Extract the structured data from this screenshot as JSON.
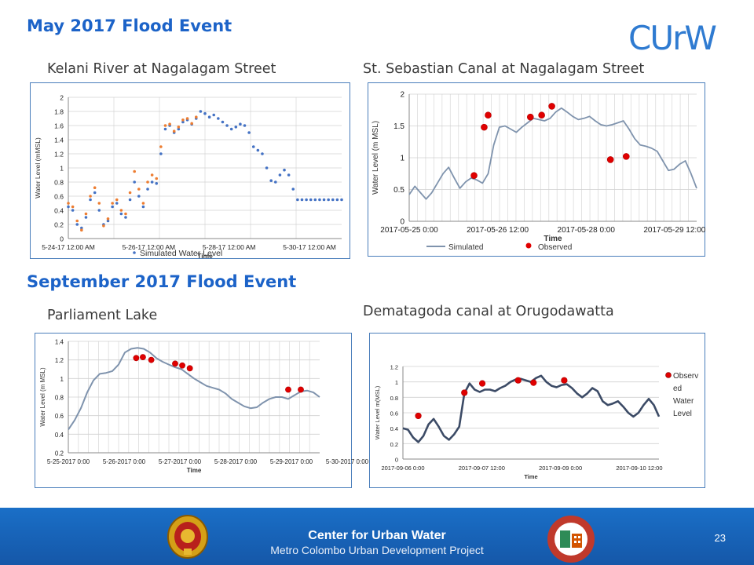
{
  "slide": {
    "title_may": "May 2017 Flood Event",
    "title_sep": "September 2017 Flood Event",
    "logo_text": "CUrW",
    "footer_title": "Center for Urban Water",
    "footer_subtitle": "Metro Colombo Urban Development Project",
    "page_number": "23",
    "colors": {
      "heading": "#1c63c8",
      "footer": "#1762b8",
      "simulated_blue": "#4472c4",
      "simulated_orange": "#ed7d31",
      "observed_red": "#e00000",
      "line_grey": "#7f93ad"
    }
  },
  "chart_data": [
    {
      "id": "kelani",
      "panel_title": "Kelani River at Nagalagam Street",
      "type": "scatter",
      "ylabel": "Water Level (mMSL)",
      "xlabel": "Time",
      "ylim": [
        0,
        2
      ],
      "yticks": [
        "0",
        "0.2",
        "0.4",
        "0.6",
        "0.8",
        "1",
        "1.2",
        "1.4",
        "1.6",
        "1.8",
        "2"
      ],
      "xticks": [
        "5-24-17 12:00 AM",
        "5-26-17 12:00 AM",
        "5-28-17 12:00 AM",
        "5-30-17 12:00 AM"
      ],
      "legend": [
        "Simulated Water Level"
      ],
      "series": [
        {
          "name": "Simulated Water Level",
          "x": [
            0,
            0.1,
            0.2,
            0.3,
            0.4,
            0.5,
            0.6,
            0.7,
            0.8,
            0.9,
            1,
            1.1,
            1.2,
            1.3,
            1.4,
            1.5,
            1.6,
            1.7,
            1.8,
            1.9,
            2,
            2.1,
            2.2,
            2.3,
            2.4,
            2.5,
            2.6,
            2.7,
            2.8,
            2.9,
            3,
            3.1,
            3.2,
            3.3,
            3.4,
            3.5,
            3.6,
            3.7,
            3.8,
            3.9,
            4,
            4.1,
            4.2,
            4.3,
            4.4,
            4.5,
            4.6,
            4.7,
            4.8,
            4.9,
            5,
            5.1,
            5.2,
            5.3,
            5.4,
            5.5,
            5.6,
            5.7,
            5.8,
            5.9,
            6,
            6.1,
            6.2
          ],
          "values": [
            0.45,
            0.4,
            0.2,
            0.15,
            0.3,
            0.55,
            0.65,
            0.4,
            0.2,
            0.25,
            0.45,
            0.5,
            0.35,
            0.3,
            0.55,
            0.8,
            0.6,
            0.45,
            0.7,
            0.8,
            0.78,
            1.2,
            1.55,
            1.6,
            1.5,
            1.55,
            1.65,
            1.68,
            1.62,
            1.7,
            1.8,
            1.77,
            1.72,
            1.75,
            1.7,
            1.65,
            1.6,
            1.55,
            1.58,
            1.62,
            1.6,
            1.5,
            1.3,
            1.25,
            1.2,
            1.0,
            0.82,
            0.8,
            0.9,
            0.97,
            0.9,
            0.7,
            0.55,
            0.55,
            0.55,
            0.55,
            0.55,
            0.55,
            0.55,
            0.55,
            0.55,
            0.55,
            0.55
          ]
        },
        {
          "name": "",
          "x": [
            0,
            0.1,
            0.2,
            0.3,
            0.4,
            0.5,
            0.6,
            0.7,
            0.8,
            0.9,
            1,
            1.1,
            1.2,
            1.3,
            1.4,
            1.5,
            1.6,
            1.7,
            1.8,
            1.9,
            2,
            2.1,
            2.2,
            2.3,
            2.4,
            2.5,
            2.6,
            2.7,
            2.8,
            2.9
          ],
          "values": [
            0.5,
            0.45,
            0.25,
            0.12,
            0.35,
            0.6,
            0.72,
            0.5,
            0.18,
            0.28,
            0.5,
            0.55,
            0.4,
            0.35,
            0.65,
            0.95,
            0.7,
            0.5,
            0.8,
            0.9,
            0.85,
            1.3,
            1.6,
            1.62,
            1.52,
            1.58,
            1.68,
            1.7,
            1.63,
            1.72
          ]
        }
      ]
    },
    {
      "id": "sebastian",
      "panel_title": "St. Sebastian Canal at Nagalagam Street",
      "type": "line",
      "ylabel": "Water Level (m MSL)",
      "xlabel": "Time",
      "ylim": [
        0,
        2
      ],
      "yticks": [
        "0",
        "0.5",
        "1",
        "1.5",
        "2"
      ],
      "xticks": [
        "2017-05-25 0:00",
        "2017-05-26 12:00",
        "2017-05-28 0:00",
        "2017-05-29 12:00"
      ],
      "legend": [
        "Simulated",
        "Observed"
      ],
      "series": [
        {
          "name": "Simulated",
          "x": [
            0,
            0.1,
            0.2,
            0.3,
            0.4,
            0.5,
            0.6,
            0.7,
            0.8,
            0.9,
            1,
            1.1,
            1.2,
            1.3,
            1.4,
            1.5,
            1.6,
            1.7,
            1.8,
            1.9,
            2,
            2.1,
            2.2,
            2.3,
            2.4,
            2.5,
            2.6,
            2.7,
            2.8,
            2.9,
            3,
            3.1,
            3.2,
            3.3,
            3.4,
            3.5,
            3.6,
            3.7,
            3.8,
            3.9,
            4,
            4.1,
            4.2,
            4.3,
            4.4,
            4.5,
            4.6,
            4.7,
            4.8,
            4.9,
            5,
            5.1
          ],
          "values": [
            0.42,
            0.55,
            0.45,
            0.35,
            0.45,
            0.6,
            0.75,
            0.85,
            0.68,
            0.52,
            0.62,
            0.68,
            0.65,
            0.6,
            0.75,
            1.2,
            1.48,
            1.5,
            1.45,
            1.4,
            1.48,
            1.55,
            1.62,
            1.6,
            1.58,
            1.62,
            1.72,
            1.78,
            1.72,
            1.65,
            1.6,
            1.62,
            1.65,
            1.58,
            1.52,
            1.5,
            1.52,
            1.55,
            1.58,
            1.45,
            1.3,
            1.2,
            1.18,
            1.15,
            1.1,
            0.95,
            0.8,
            0.82,
            0.9,
            0.95,
            0.75,
            0.52
          ]
        },
        {
          "name": "Observed",
          "x": [
            1.15,
            1.33,
            1.4,
            2.15,
            2.35,
            2.53,
            3.57,
            3.85
          ],
          "values": [
            0.72,
            1.48,
            1.67,
            1.64,
            1.67,
            1.81,
            0.97,
            1.02
          ]
        }
      ]
    },
    {
      "id": "parliament",
      "panel_title": "Parliament Lake",
      "type": "line",
      "ylabel": "Water Level (m MSL)",
      "xlabel": "Time",
      "ylim": [
        0.2,
        1.4
      ],
      "yticks": [
        "0.2",
        "0.4",
        "0.6",
        "0.8",
        "1",
        "1.2",
        "1.4"
      ],
      "xticks": [
        "5-25-2017 0:00",
        "5-26-2017 0:00",
        "5-27-2017 0:00",
        "5-28-2017 0:00",
        "5-29-2017 0:00",
        "5-30-2017 0:00"
      ],
      "legend": [],
      "series": [
        {
          "name": "",
          "x": [
            0,
            0.15,
            0.3,
            0.45,
            0.6,
            0.75,
            0.9,
            1.05,
            1.2,
            1.35,
            1.5,
            1.65,
            1.8,
            1.95,
            2.1,
            2.25,
            2.4,
            2.55,
            2.7,
            2.85,
            3,
            3.15,
            3.3,
            3.45,
            3.6,
            3.75,
            3.9,
            4.05,
            4.2,
            4.35,
            4.5,
            4.65,
            4.8,
            4.95,
            5.1,
            5.25,
            5.4,
            5.55,
            5.7,
            5.85,
            6
          ],
          "values": [
            0.45,
            0.55,
            0.68,
            0.85,
            0.98,
            1.05,
            1.06,
            1.08,
            1.15,
            1.28,
            1.32,
            1.33,
            1.32,
            1.28,
            1.22,
            1.18,
            1.15,
            1.12,
            1.1,
            1.05,
            1.0,
            0.96,
            0.92,
            0.9,
            0.88,
            0.84,
            0.78,
            0.74,
            0.7,
            0.68,
            0.69,
            0.74,
            0.78,
            0.8,
            0.8,
            0.78,
            0.82,
            0.86,
            0.87,
            0.85,
            0.8
          ]
        },
        {
          "name": "",
          "x": [
            1.62,
            1.78,
            1.98,
            2.55,
            2.72,
            2.9,
            5.25,
            5.55
          ],
          "values": [
            1.22,
            1.23,
            1.2,
            1.16,
            1.14,
            1.11,
            0.88,
            0.88
          ]
        }
      ]
    },
    {
      "id": "dematagoda",
      "panel_title": "Dematagoda canal at Orugodawatta",
      "type": "scatter",
      "ylabel": "Water Level m(MSL)",
      "xlabel": "Time",
      "ylim": [
        0,
        1.2
      ],
      "yticks": [
        "0",
        "0.2",
        "0.4",
        "0.6",
        "0.8",
        "1",
        "1.2"
      ],
      "xticks": [
        "2017-09-06 0:00",
        "2017-09-07 12:00",
        "2017-09-09 0:00",
        "2017-09-10 12:00"
      ],
      "legend": [
        "Observ ed Water Level"
      ],
      "legend_lines": [
        "Observ",
        "ed",
        "Water",
        "Level"
      ],
      "series": [
        {
          "name": "",
          "x": [
            0,
            0.1,
            0.2,
            0.3,
            0.4,
            0.5,
            0.6,
            0.7,
            0.8,
            0.9,
            1,
            1.1,
            1.2,
            1.3,
            1.4,
            1.5,
            1.6,
            1.7,
            1.8,
            1.9,
            2,
            2.1,
            2.2,
            2.3,
            2.4,
            2.5,
            2.6,
            2.7,
            2.8,
            2.9,
            3,
            3.1,
            3.2,
            3.3,
            3.4,
            3.5,
            3.6,
            3.7,
            3.8,
            3.9,
            4,
            4.1,
            4.2,
            4.3,
            4.4,
            4.5,
            4.6,
            4.7,
            4.8,
            4.9,
            5
          ],
          "values": [
            0.4,
            0.38,
            0.28,
            0.22,
            0.3,
            0.45,
            0.52,
            0.42,
            0.3,
            0.25,
            0.32,
            0.42,
            0.85,
            0.98,
            0.9,
            0.87,
            0.9,
            0.9,
            0.88,
            0.92,
            0.95,
            1.0,
            1.03,
            1.04,
            1.02,
            1.0,
            1.05,
            1.08,
            1.0,
            0.95,
            0.93,
            0.96,
            0.97,
            0.92,
            0.85,
            0.8,
            0.85,
            0.92,
            0.88,
            0.75,
            0.7,
            0.72,
            0.75,
            0.68,
            0.6,
            0.55,
            0.6,
            0.7,
            0.78,
            0.7,
            0.55
          ]
        },
        {
          "name": "Observ ed Water Level",
          "x": [
            0.3,
            1.2,
            1.55,
            2.25,
            2.55,
            3.15
          ],
          "values": [
            0.56,
            0.86,
            0.98,
            1.02,
            0.99,
            1.02
          ]
        }
      ]
    }
  ]
}
